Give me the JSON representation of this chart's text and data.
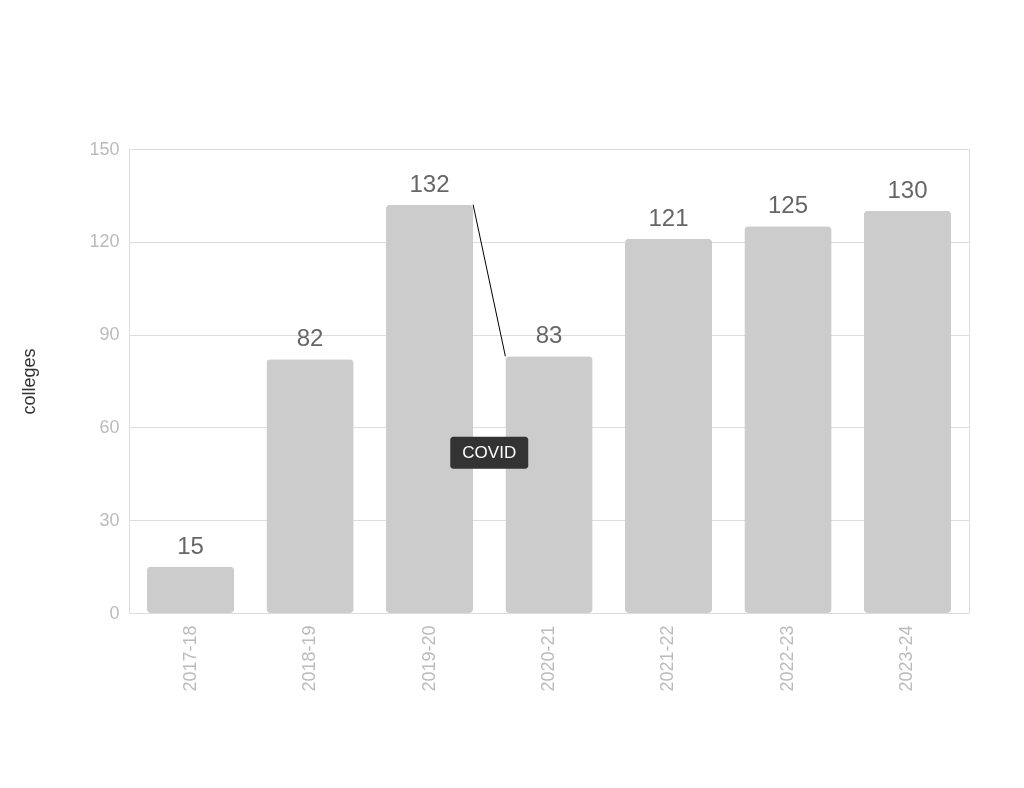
{
  "chart_data": {
    "type": "bar",
    "ylabel": "colleges",
    "categories": [
      "2017-18",
      "2018-19",
      "2019-20",
      "2020-21",
      "2021-22",
      "2022-23",
      "2023-24"
    ],
    "values": [
      15,
      82,
      132,
      83,
      121,
      125,
      130
    ],
    "color": "#cccccc",
    "ylim": [
      0,
      150
    ],
    "yticks": [
      0,
      30,
      60,
      90,
      120,
      150
    ],
    "grid": "y",
    "data_labels": true,
    "annotations": [
      "COVID"
    ]
  }
}
